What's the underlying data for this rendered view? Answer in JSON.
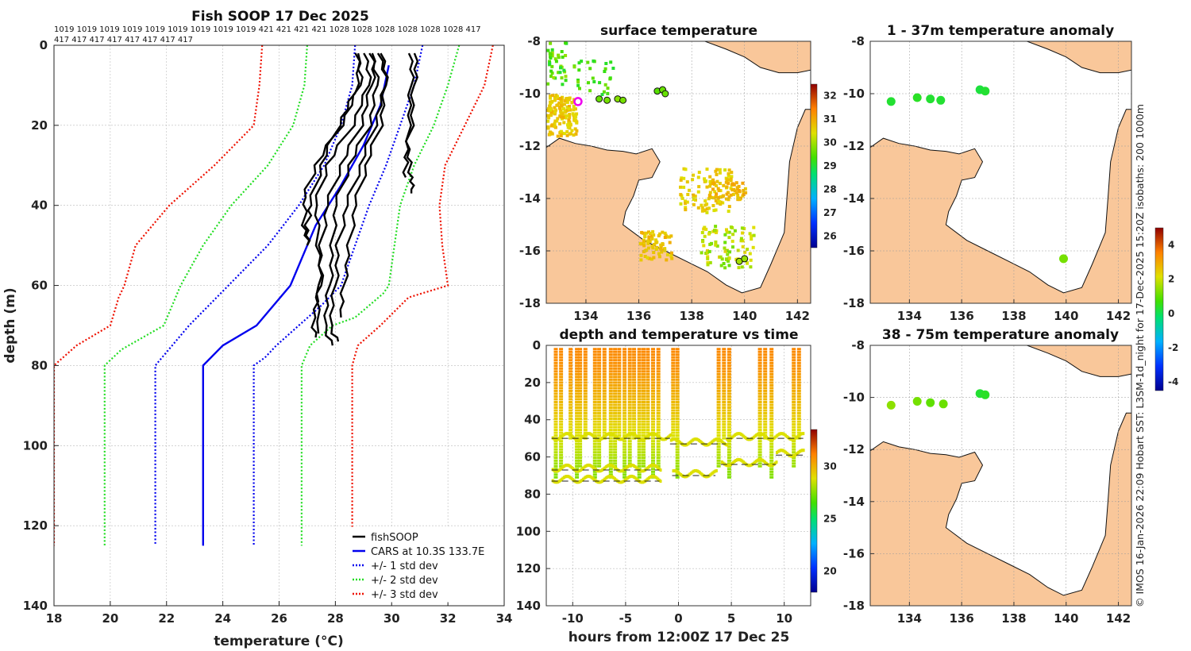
{
  "left_panel": {
    "title": "Fish SOOP 17 Dec 2025",
    "pressure_row1": "1019 1019 1019 1019 1019 1019 1019 1019 1019 421 421 421 421 1028 1028 1028 1028 1028 1028 417",
    "pressure_row2": "417 417 417 417 417 417 417 417",
    "xlabel": "temperature (°C)",
    "ylabel": "depth (m)"
  },
  "sst_panel": {
    "title": "surface temperature"
  },
  "time_panel": {
    "title": "depth and temperature vs time",
    "xlabel": "hours from 12:00Z 17 Dec 25"
  },
  "anom1_panel": {
    "title": "1 - 37m temperature anomaly"
  },
  "anom2_panel": {
    "title": "38 - 75m temperature anomaly"
  },
  "side_note": "© IMOS 16-Jan-2026 22:09 Hobart SST: L3SM-1d_night for 17-Dec-2025 15:20Z isobaths: 200  1000m",
  "colors": {
    "land": "#f9c79a",
    "fish": "#000000",
    "cars": "#0000ee",
    "std1": "#0000ee",
    "std2": "#22dd22",
    "std3": "#ee1100"
  },
  "colorbars": {
    "sst_ticks": [
      "32",
      "31",
      "30",
      "29",
      "28",
      "27",
      "26"
    ],
    "time_ticks": [
      "30",
      "25",
      "20"
    ],
    "anom_ticks": [
      "4",
      "2",
      "0",
      "-2",
      "-4"
    ]
  },
  "chart_data": [
    {
      "type": "line",
      "title": "Fish SOOP 17 Dec 2025",
      "xlabel": "temperature (°C)",
      "ylabel": "depth (m)",
      "xlim": [
        18,
        34
      ],
      "ylim": [
        0,
        140
      ],
      "y_reversed": true,
      "x_ticks": [
        "18",
        "20",
        "22",
        "24",
        "26",
        "28",
        "30",
        "32",
        "34"
      ],
      "y_ticks": [
        "0",
        "20",
        "40",
        "60",
        "80",
        "100",
        "120",
        "140"
      ],
      "legend": {
        "position": "bottom-right",
        "entries": [
          "fishSOOP",
          "CARS at 10.3S 133.7E",
          "+/- 1 std dev",
          "+/- 2 std dev",
          "+/- 3 std dev"
        ]
      },
      "series": [
        {
          "name": "CARS at 10.3S 133.7E",
          "style": "solid",
          "color": "#0000ee",
          "x": [
            29.9,
            29.6,
            29.0,
            28.2,
            27.3,
            26.4,
            25.2,
            24.0,
            23.3,
            23.3,
            23.3
          ],
          "y": [
            5,
            15,
            25,
            35,
            45,
            60,
            70,
            75,
            80,
            100,
            125
          ]
        },
        {
          "name": "+/- 1 std dev low",
          "style": "dotted",
          "color": "#0000ee",
          "x": [
            28.7,
            28.6,
            28.2,
            27.6,
            26.7,
            25.6,
            24.2,
            22.8,
            21.6,
            21.6,
            21.6
          ],
          "y": [
            0,
            10,
            20,
            30,
            40,
            50,
            60,
            70,
            80,
            100,
            125
          ]
        },
        {
          "name": "+/- 1 std dev high",
          "style": "dotted",
          "color": "#0000ee",
          "x": [
            31.1,
            30.8,
            30.3,
            29.8,
            29.2,
            28.7,
            28.2,
            27.5,
            26.7,
            25.9,
            25.5,
            25.1,
            25.1,
            25.1
          ],
          "y": [
            0,
            10,
            20,
            30,
            40,
            50,
            60,
            65,
            70,
            75,
            78,
            80,
            100,
            125
          ]
        },
        {
          "name": "+/- 2 std dev low",
          "style": "dotted",
          "color": "#22dd22",
          "x": [
            27.0,
            26.9,
            26.5,
            25.6,
            24.3,
            23.3,
            22.5,
            21.9,
            20.9,
            20.4,
            19.8,
            19.8,
            19.8
          ],
          "y": [
            0,
            10,
            20,
            30,
            40,
            50,
            60,
            70,
            74,
            76,
            80,
            100,
            125
          ]
        },
        {
          "name": "+/- 2 std dev high",
          "style": "dotted",
          "color": "#22dd22",
          "x": [
            32.4,
            32.0,
            31.5,
            30.8,
            30.3,
            30.1,
            29.9,
            29.7,
            28.7,
            27.9,
            27.1,
            26.8,
            26.8,
            26.8
          ],
          "y": [
            0,
            10,
            20,
            30,
            40,
            50,
            60,
            62,
            68,
            70,
            75,
            80,
            100,
            125
          ]
        },
        {
          "name": "+/- 3 std dev low",
          "style": "dotted",
          "color": "#ee1100",
          "x": [
            25.4,
            25.3,
            25.1,
            23.7,
            22.1,
            20.9,
            20.5,
            20.3,
            20.0,
            18.8,
            18.0,
            18.0,
            18.0
          ],
          "y": [
            0,
            10,
            20,
            30,
            40,
            50,
            60,
            63,
            70,
            75,
            80,
            100,
            125
          ]
        },
        {
          "name": "+/- 3 std dev high",
          "style": "dotted",
          "color": "#ee1100",
          "x": [
            33.6,
            33.3,
            32.6,
            31.9,
            31.7,
            31.8,
            32.0,
            30.6,
            29.6,
            28.8,
            28.6,
            28.6,
            28.6
          ],
          "y": [
            0,
            10,
            20,
            30,
            40,
            50,
            60,
            63,
            70,
            75,
            80,
            100,
            125
          ]
        },
        {
          "name": "fishSOOP profile A",
          "style": "solid",
          "color": "#000000",
          "x": [
            29.1,
            29.2,
            28.6,
            27.7,
            27.3,
            27.4,
            27.5,
            27.2,
            27.3
          ],
          "y": [
            2,
            10,
            20,
            30,
            40,
            50,
            60,
            68,
            73
          ]
        },
        {
          "name": "fishSOOP profile B",
          "style": "solid",
          "color": "#000000",
          "x": [
            29.3,
            29.5,
            29.2,
            28.5,
            28.0,
            27.9,
            27.8,
            27.6,
            27.9
          ],
          "y": [
            2,
            10,
            20,
            30,
            40,
            50,
            60,
            70,
            75
          ]
        },
        {
          "name": "fishSOOP profile C",
          "style": "solid",
          "color": "#000000",
          "x": [
            29.7,
            29.8,
            29.4,
            28.9,
            28.4,
            28.1,
            28.0,
            27.8,
            28.1
          ],
          "y": [
            2,
            10,
            20,
            30,
            40,
            50,
            60,
            70,
            74
          ]
        },
        {
          "name": "fishSOOP profile D",
          "style": "solid",
          "color": "#000000",
          "x": [
            28.9,
            28.7,
            28.1,
            27.5,
            27.1,
            27.0,
            27.0
          ],
          "y": [
            2,
            12,
            20,
            30,
            40,
            45,
            50
          ]
        },
        {
          "name": "fishSOOP profile E",
          "style": "solid",
          "color": "#000000",
          "x": [
            29.6,
            29.8,
            29.6,
            29.1,
            28.7,
            28.5,
            28.3,
            28.2
          ],
          "y": [
            2,
            10,
            20,
            30,
            40,
            50,
            60,
            68
          ]
        },
        {
          "name": "fishSOOP profile F",
          "style": "solid",
          "color": "#000000",
          "x": [
            28.8,
            28.9,
            28.2,
            27.3,
            26.9,
            26.9,
            27.0
          ],
          "y": [
            2,
            10,
            20,
            30,
            38,
            45,
            50
          ]
        },
        {
          "name": "fishSOOP profile G",
          "style": "solid",
          "color": "#000000",
          "x": [
            29.4,
            29.3,
            28.9,
            28.2,
            27.7,
            27.5,
            27.4,
            27.4
          ],
          "y": [
            2,
            10,
            20,
            30,
            40,
            50,
            60,
            72
          ]
        },
        {
          "name": "fishSOOP profile H",
          "style": "solid",
          "color": "#000000",
          "x": [
            30.7,
            30.7,
            30.6,
            30.6,
            30.7,
            30.7
          ],
          "y": [
            2,
            10,
            20,
            28,
            33,
            37
          ]
        },
        {
          "name": "fishSOOP profile I",
          "style": "solid",
          "color": "#000000",
          "x": [
            30.9,
            30.8,
            30.7,
            30.5,
            30.5
          ],
          "y": [
            2,
            10,
            20,
            28,
            33
          ]
        }
      ]
    },
    {
      "type": "heatmap",
      "title": "surface temperature",
      "xlim": [
        132.5,
        142.5
      ],
      "ylim": [
        -18,
        -8
      ],
      "x_ticks": [
        "134",
        "136",
        "138",
        "140",
        "142"
      ],
      "y_ticks": [
        "-8",
        "-10",
        "-12",
        "-14",
        "-16",
        "-18"
      ],
      "colorbar_range": [
        25.5,
        32.5
      ],
      "observations": [
        {
          "lon": 133.7,
          "lat": -10.3,
          "marker": "magenta-ring"
        },
        {
          "lon": 134.5,
          "lat": -10.2,
          "value": 29.6
        },
        {
          "lon": 134.8,
          "lat": -10.25,
          "value": 29.7
        },
        {
          "lon": 135.2,
          "lat": -10.2,
          "value": 29.8
        },
        {
          "lon": 135.4,
          "lat": -10.25,
          "value": 29.7
        },
        {
          "lon": 136.7,
          "lat": -9.9,
          "value": 29.5
        },
        {
          "lon": 136.9,
          "lat": -9.85,
          "value": 29.6
        },
        {
          "lon": 137.0,
          "lat": -10.0,
          "value": 29.6
        },
        {
          "lon": 139.8,
          "lat": -16.4,
          "value": 30.0
        },
        {
          "lon": 140.0,
          "lat": -16.3,
          "value": 29.9
        }
      ]
    },
    {
      "type": "scatter",
      "title": "depth and temperature vs time",
      "xlabel": "hours from 12:00Z 17 Dec 25",
      "xlim": [
        -12.5,
        12.5
      ],
      "ylim": [
        0,
        140
      ],
      "y_reversed": true,
      "x_ticks": [
        "-10",
        "-5",
        "0",
        "5",
        "10"
      ],
      "y_ticks": [
        "0",
        "20",
        "40",
        "60",
        "80",
        "100",
        "120",
        "140"
      ],
      "colorbar_range": [
        18,
        33.5
      ],
      "casts_hours": [
        -11.6,
        -11.1,
        -10.2,
        -9.6,
        -9.3,
        -8.8,
        -7.9,
        -7.5,
        -7.0,
        -6.4,
        -6.0,
        -5.6,
        -5.1,
        -4.6,
        -4.2,
        -3.7,
        -3.3,
        -2.9,
        -2.4,
        -1.9,
        -0.5,
        -0.1,
        3.8,
        4.3,
        4.8,
        7.7,
        8.2,
        8.8,
        10.9,
        11.4
      ],
      "bottom_segments": [
        {
          "from": -12,
          "to": -0.8,
          "depth": 49
        },
        {
          "from": -0.8,
          "to": 4.5,
          "depth": 52
        },
        {
          "from": 4.5,
          "to": 11.8,
          "depth": 49
        },
        {
          "from": -12,
          "to": -1.8,
          "depth": 66
        },
        {
          "from": -12,
          "to": -1.8,
          "depth": 72
        },
        {
          "from": -0.6,
          "to": 3.5,
          "depth": 69
        },
        {
          "from": 4.0,
          "to": 9.2,
          "depth": 63
        },
        {
          "from": 9.2,
          "to": 11.8,
          "depth": 58
        }
      ]
    },
    {
      "type": "heatmap",
      "title": "1 - 37m temperature anomaly",
      "xlim": [
        132.5,
        142.5
      ],
      "ylim": [
        -18,
        -8
      ],
      "x_ticks": [
        "134",
        "136",
        "138",
        "140",
        "142"
      ],
      "y_ticks": [
        "-8",
        "-10",
        "-12",
        "-14",
        "-16",
        "-18"
      ],
      "colorbar_range": [
        -4.5,
        5
      ],
      "observations": [
        {
          "lon": 133.3,
          "lat": -10.3,
          "value": 0.3
        },
        {
          "lon": 134.3,
          "lat": -10.15,
          "value": 0.4
        },
        {
          "lon": 134.8,
          "lat": -10.2,
          "value": 0.3
        },
        {
          "lon": 135.2,
          "lat": -10.25,
          "value": 0.3
        },
        {
          "lon": 136.7,
          "lat": -9.85,
          "value": 0.2
        },
        {
          "lon": 136.9,
          "lat": -9.9,
          "value": 0.3
        },
        {
          "lon": 139.9,
          "lat": -16.3,
          "value": 1.2
        }
      ]
    },
    {
      "type": "heatmap",
      "title": "38 - 75m temperature anomaly",
      "xlim": [
        132.5,
        142.5
      ],
      "ylim": [
        -18,
        -8
      ],
      "x_ticks": [
        "134",
        "136",
        "138",
        "140",
        "142"
      ],
      "y_ticks": [
        "-8",
        "-10",
        "-12",
        "-14",
        "-16",
        "-18"
      ],
      "colorbar_range": [
        -4.5,
        5
      ],
      "observations": [
        {
          "lon": 133.3,
          "lat": -10.3,
          "value": 1.4
        },
        {
          "lon": 134.3,
          "lat": -10.15,
          "value": 1.2
        },
        {
          "lon": 134.8,
          "lat": -10.2,
          "value": 1.0
        },
        {
          "lon": 135.3,
          "lat": -10.25,
          "value": 1.1
        },
        {
          "lon": 136.7,
          "lat": -9.85,
          "value": 0.3
        },
        {
          "lon": 136.9,
          "lat": -9.9,
          "value": 0.4
        }
      ]
    }
  ]
}
